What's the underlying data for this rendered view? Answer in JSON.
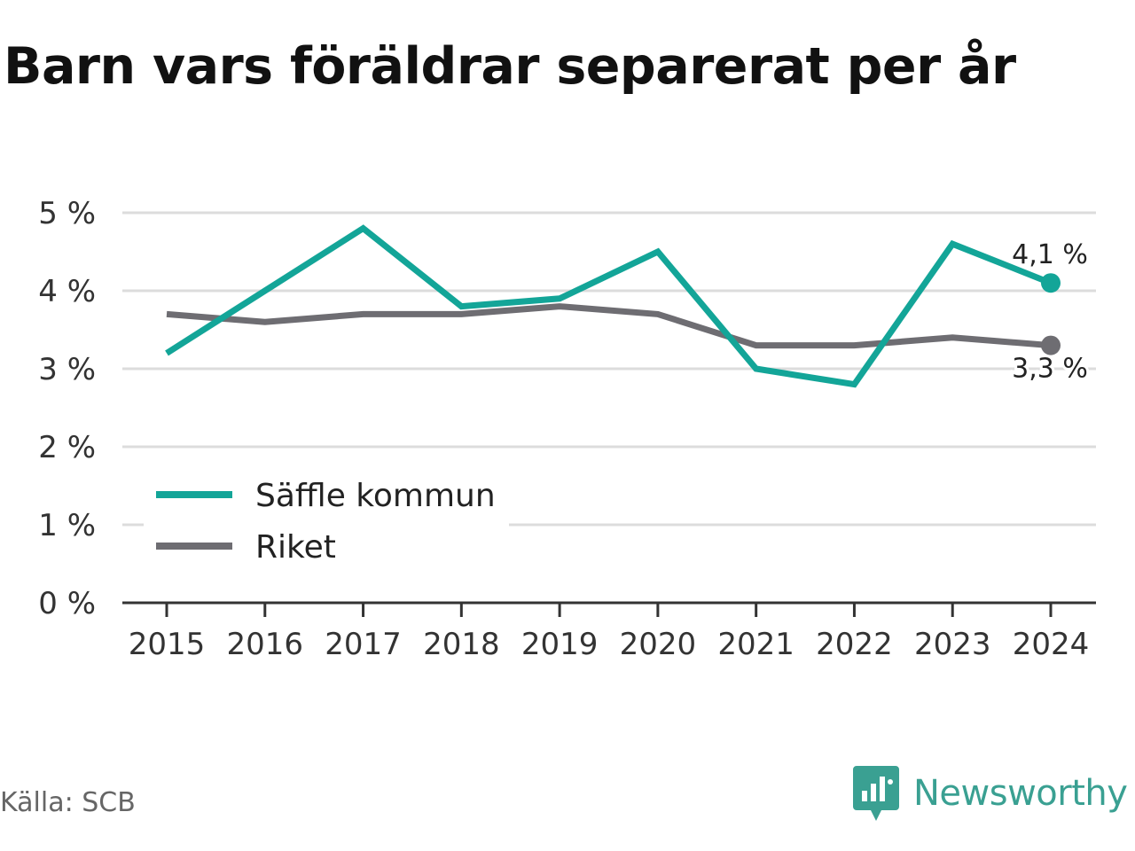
{
  "chart_data": {
    "type": "line",
    "title": "Barn vars föräldrar separerat per år",
    "xlabel": "",
    "ylabel": "",
    "x": [
      "2015",
      "2016",
      "2017",
      "2018",
      "2019",
      "2020",
      "2021",
      "2022",
      "2023",
      "2024"
    ],
    "ylim": [
      0,
      5
    ],
    "yticks": [
      "0 %",
      "1 %",
      "2 %",
      "3 %",
      "4 %",
      "5 %"
    ],
    "grid": true,
    "legend_position": "lower-left",
    "series": [
      {
        "name": "Säffle kommun",
        "color": "#13a598",
        "values": [
          3.2,
          4.0,
          4.8,
          3.8,
          3.9,
          4.5,
          3.0,
          2.8,
          4.6,
          4.1
        ],
        "end_label": "4,1 %"
      },
      {
        "name": "Riket",
        "color": "#6e6d72",
        "values": [
          3.7,
          3.6,
          3.7,
          3.7,
          3.8,
          3.7,
          3.3,
          3.3,
          3.4,
          3.3
        ],
        "end_label": "3,3 %"
      }
    ]
  },
  "footer": {
    "source": "Källa: SCB",
    "brand": "Newsworthy",
    "brand_color": "#3aa092",
    "logo_icon": "newsworthy-logo-icon"
  }
}
